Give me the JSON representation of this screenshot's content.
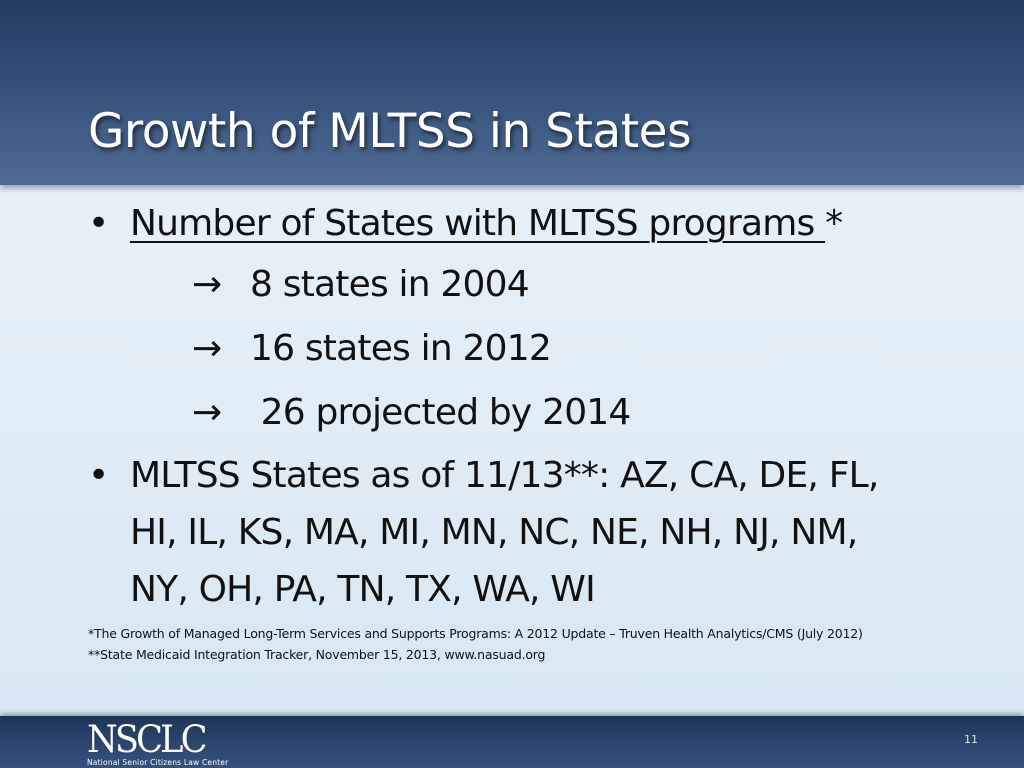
{
  "slide": {
    "title": "Growth of MLTSS in States",
    "bullet1": {
      "text": "Number of States with MLTSS programs ",
      "suffix": "*"
    },
    "sub_items": [
      {
        "arrow": "→",
        "text": "8 states in 2004"
      },
      {
        "arrow": "→",
        "text": "16 states in 2012"
      },
      {
        "arrow": "→",
        "text": " 26 projected by 2014"
      }
    ],
    "bullet2": {
      "lines": [
        "MLTSS States as of 11/13**: AZ, CA, DE, FL,",
        "HI, IL, KS, MA, MI, MN, NC, NE, NH, NJ, NM,",
        "NY, OH, PA, TN, TX, WA, WI"
      ]
    },
    "footnotes": [
      "*The Growth of Managed Long-Term Services and Supports Programs: A 2012 Update – Truven Health Analytics/CMS (July 2012)",
      "**State Medicaid Integration Tracker, November 15, 2013, www.nasuad.org"
    ],
    "logo": {
      "mark": "NSCLC",
      "subtitle": "National Senior Citizens Law Center"
    },
    "page_number": "11",
    "bullet_glyph": "•"
  }
}
